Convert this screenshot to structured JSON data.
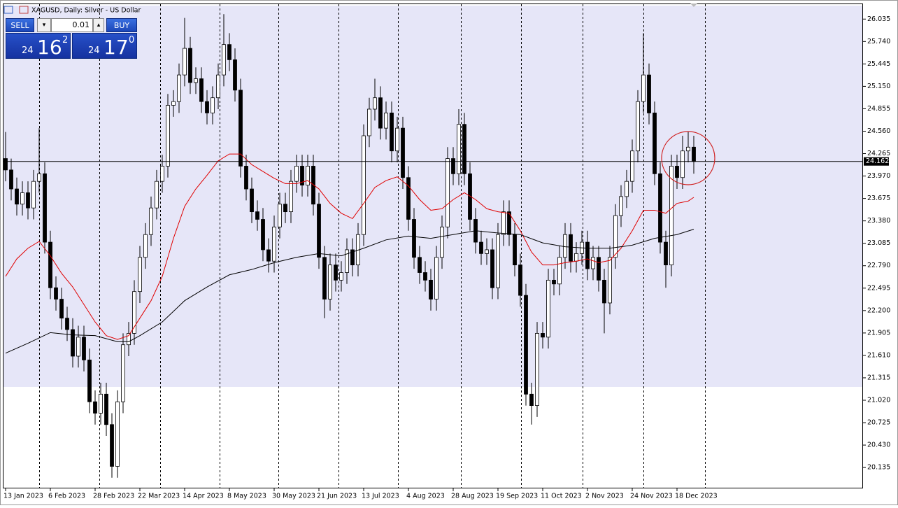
{
  "chart_data": {
    "type": "candlestick",
    "title": "XAGUSD, Daily:  Silver - US Dollar",
    "open": [
      24.2,
      24.05,
      23.8,
      23.6,
      23.75,
      23.55,
      23.9,
      24.0,
      23.1,
      22.5,
      22.35,
      22.1,
      21.95,
      21.6,
      21.85,
      21.55,
      21.0,
      20.85,
      21.1,
      20.7,
      20.15,
      21.0,
      21.75,
      21.9,
      22.45,
      22.9,
      23.2,
      23.55,
      23.9,
      24.1,
      24.9,
      24.95,
      25.3,
      25.65,
      25.2,
      25.25,
      24.95,
      24.8,
      25.0,
      25.3,
      25.7,
      25.5,
      25.1,
      24.1,
      23.8,
      23.5,
      23.4,
      23.0,
      22.85,
      23.3,
      23.6,
      23.5,
      23.9,
      24.1,
      23.85,
      24.1,
      23.6,
      22.9,
      22.35,
      22.8,
      22.6,
      22.7,
      23.0,
      22.8,
      23.2,
      24.5,
      24.85,
      25.0,
      24.6,
      24.8,
      24.3,
      24.6,
      23.95,
      23.4,
      22.9,
      22.7,
      22.6,
      22.35,
      22.9,
      23.3,
      24.2,
      24.0,
      24.65,
      24.0,
      23.4,
      23.1,
      22.95,
      23.0,
      22.5,
      23.2,
      23.5,
      23.2,
      22.8,
      22.4,
      21.1,
      20.95,
      21.9,
      21.85,
      22.6,
      22.55,
      22.9,
      23.2,
      22.85,
      22.95,
      23.1,
      22.75,
      22.9,
      22.6,
      22.3,
      22.9,
      23.45,
      23.7,
      23.9,
      24.3,
      24.95,
      25.3,
      24.8,
      24.0,
      23.1,
      22.8,
      24.1,
      23.95,
      24.3,
      24.35
    ],
    "high": [
      24.55,
      24.2,
      23.95,
      23.9,
      23.9,
      24.05,
      24.6,
      24.15,
      23.25,
      22.65,
      22.5,
      22.25,
      22.1,
      22.0,
      22.0,
      21.7,
      21.15,
      21.25,
      21.25,
      20.85,
      21.15,
      21.9,
      22.05,
      22.6,
      23.05,
      23.35,
      23.7,
      24.05,
      24.25,
      25.05,
      25.1,
      25.45,
      26.05,
      25.8,
      25.4,
      25.4,
      25.1,
      25.15,
      25.45,
      26.1,
      25.85,
      25.65,
      25.25,
      24.25,
      23.95,
      23.65,
      23.55,
      23.15,
      23.45,
      23.75,
      23.75,
      24.05,
      24.25,
      24.25,
      24.25,
      24.25,
      23.75,
      23.05,
      22.95,
      22.95,
      22.85,
      23.15,
      23.15,
      23.35,
      24.65,
      25.0,
      25.25,
      25.15,
      24.95,
      24.95,
      24.75,
      24.75,
      24.1,
      23.55,
      23.05,
      22.85,
      22.75,
      23.05,
      23.45,
      24.35,
      24.35,
      24.85,
      24.8,
      24.15,
      23.55,
      23.25,
      23.15,
      23.15,
      23.35,
      23.65,
      23.65,
      23.35,
      22.95,
      22.55,
      21.25,
      22.05,
      22.05,
      22.75,
      22.75,
      23.05,
      23.35,
      23.35,
      23.1,
      23.25,
      23.25,
      23.05,
      23.05,
      22.75,
      23.05,
      23.6,
      23.85,
      24.05,
      24.45,
      25.1,
      25.85,
      25.45,
      24.95,
      24.15,
      23.25,
      24.25,
      24.25,
      24.5,
      24.55,
      24.5
    ],
    "low": [
      23.9,
      23.65,
      23.45,
      23.45,
      23.4,
      23.4,
      23.75,
      22.95,
      22.35,
      22.2,
      21.95,
      21.8,
      21.45,
      21.45,
      21.4,
      20.85,
      20.7,
      20.7,
      20.55,
      20.0,
      20.0,
      20.85,
      21.6,
      21.75,
      22.3,
      22.75,
      23.05,
      23.4,
      23.75,
      23.95,
      24.75,
      24.8,
      25.15,
      25.05,
      25.05,
      24.8,
      24.65,
      24.65,
      24.85,
      25.15,
      25.35,
      24.95,
      23.95,
      23.65,
      23.35,
      23.25,
      22.85,
      22.7,
      22.7,
      23.15,
      23.35,
      23.35,
      23.75,
      23.7,
      23.7,
      23.45,
      22.75,
      22.1,
      22.2,
      22.45,
      22.45,
      22.55,
      22.65,
      22.65,
      23.05,
      24.35,
      24.7,
      24.45,
      24.45,
      24.15,
      24.15,
      23.8,
      23.25,
      22.75,
      22.55,
      22.45,
      22.2,
      22.2,
      22.75,
      23.15,
      23.85,
      23.85,
      23.85,
      23.25,
      22.95,
      22.8,
      22.8,
      22.35,
      22.35,
      23.05,
      23.05,
      22.65,
      22.25,
      20.95,
      20.7,
      20.8,
      21.7,
      21.7,
      22.4,
      22.4,
      22.75,
      22.7,
      22.7,
      22.8,
      22.6,
      22.6,
      22.45,
      21.9,
      22.15,
      22.75,
      23.3,
      23.55,
      23.75,
      24.15,
      24.8,
      24.65,
      23.85,
      22.95,
      22.5,
      22.65,
      23.8,
      23.8,
      24.15,
      24.0
    ],
    "close": [
      24.05,
      23.8,
      23.6,
      23.75,
      23.55,
      23.9,
      24.0,
      23.1,
      22.5,
      22.35,
      22.1,
      21.95,
      21.6,
      21.85,
      21.55,
      21.0,
      20.85,
      21.1,
      20.7,
      20.15,
      21.0,
      21.75,
      21.9,
      22.45,
      22.9,
      23.2,
      23.55,
      23.9,
      24.1,
      24.9,
      24.95,
      25.3,
      25.65,
      25.2,
      25.25,
      24.95,
      24.8,
      25.0,
      25.3,
      25.7,
      25.5,
      25.1,
      24.1,
      23.8,
      23.5,
      23.4,
      23.0,
      22.85,
      23.3,
      23.6,
      23.5,
      23.9,
      24.1,
      23.85,
      24.1,
      23.6,
      22.9,
      22.35,
      22.8,
      22.6,
      22.7,
      23.0,
      22.8,
      23.2,
      24.5,
      24.85,
      25.0,
      24.6,
      24.8,
      24.3,
      24.6,
      23.95,
      23.4,
      22.9,
      22.7,
      22.6,
      22.35,
      22.9,
      23.3,
      24.2,
      24.0,
      24.65,
      24.0,
      23.4,
      23.1,
      22.95,
      23.0,
      22.5,
      23.2,
      23.5,
      23.2,
      22.8,
      22.4,
      21.1,
      20.95,
      21.9,
      21.85,
      22.6,
      22.55,
      22.9,
      23.2,
      22.85,
      22.95,
      23.1,
      22.75,
      22.9,
      22.6,
      22.3,
      22.9,
      23.45,
      23.7,
      23.9,
      24.3,
      24.95,
      25.3,
      24.8,
      24.0,
      23.1,
      22.8,
      24.1,
      23.95,
      24.3,
      24.35,
      24.162
    ],
    "up_color": "#ffffff",
    "down_color": "#000000",
    "overlays": [
      {
        "color": "#e00000",
        "x": [
          0,
          2,
          4,
          6,
          8,
          10,
          12,
          14,
          16,
          18,
          20,
          22,
          24,
          26,
          28,
          30,
          32,
          34,
          36,
          38,
          40,
          42,
          44,
          46,
          48,
          50,
          52,
          54,
          56,
          58,
          60,
          62,
          64,
          66,
          68,
          70,
          72,
          74,
          76,
          78,
          80,
          82,
          84,
          86,
          88,
          90,
          92,
          94,
          96,
          98,
          100,
          102,
          104,
          106,
          108,
          110,
          112,
          114,
          116,
          118,
          120,
          122,
          123
        ],
        "values": [
          22.65,
          22.88,
          23.02,
          23.11,
          22.92,
          22.69,
          22.51,
          22.28,
          22.05,
          21.87,
          21.82,
          21.87,
          22.1,
          22.33,
          22.65,
          23.15,
          23.57,
          23.8,
          23.98,
          24.17,
          24.26,
          24.26,
          24.12,
          24.03,
          23.94,
          23.87,
          23.87,
          23.91,
          23.8,
          23.61,
          23.48,
          23.41,
          23.61,
          23.82,
          23.91,
          23.96,
          23.84,
          23.66,
          23.52,
          23.54,
          23.66,
          23.75,
          23.66,
          23.54,
          23.5,
          23.48,
          23.25,
          22.97,
          22.8,
          22.8,
          22.83,
          22.85,
          22.88,
          22.83,
          22.86,
          23.02,
          23.25,
          23.52,
          23.52,
          23.48,
          23.61,
          23.64,
          23.69
        ]
      },
      {
        "color": "#000000",
        "x": [
          0,
          4,
          8,
          12,
          16,
          20,
          22,
          24,
          28,
          32,
          36,
          40,
          44,
          48,
          52,
          56,
          60,
          64,
          68,
          72,
          76,
          80,
          84,
          88,
          92,
          96,
          100,
          104,
          108,
          112,
          116,
          120,
          123
        ],
        "values": [
          21.64,
          21.77,
          21.91,
          21.88,
          21.87,
          21.79,
          21.79,
          21.87,
          22.05,
          22.33,
          22.51,
          22.67,
          22.74,
          22.83,
          22.9,
          22.95,
          22.92,
          23.02,
          23.13,
          23.18,
          23.15,
          23.2,
          23.25,
          23.22,
          23.2,
          23.09,
          23.04,
          23.02,
          23.02,
          23.06,
          23.15,
          23.2,
          23.27
        ]
      }
    ],
    "current_price": 24.162,
    "xlim": [
      -0.375,
      153.25
    ],
    "xticks": [
      {
        "value": 0,
        "label": "13 Jan 2023"
      },
      {
        "value": 8,
        "label": "6 Feb 2023"
      },
      {
        "value": 16,
        "label": "28 Feb 2023"
      },
      {
        "value": 24,
        "label": "22 Mar 2023"
      },
      {
        "value": 32,
        "label": "14 Apr 2023"
      },
      {
        "value": 40,
        "label": "8 May 2023"
      },
      {
        "value": 48,
        "label": "30 May 2023"
      },
      {
        "value": 56,
        "label": "21 Jun 2023"
      },
      {
        "value": 64,
        "label": "13 Jul 2023"
      },
      {
        "value": 72,
        "label": "4 Aug 2023"
      },
      {
        "value": 80,
        "label": "28 Aug 2023"
      },
      {
        "value": 88,
        "label": "19 Sep 2023"
      },
      {
        "value": 96,
        "label": "11 Oct 2023"
      },
      {
        "value": 104,
        "label": "2 Nov 2023"
      },
      {
        "value": 112,
        "label": "24 Nov 2023"
      },
      {
        "value": 120,
        "label": "18 Dec 2023"
      }
    ],
    "separators": [
      6,
      16.75,
      27.625,
      38.25,
      48.75,
      59.5,
      70.125,
      81.375,
      92.125,
      103.125,
      114,
      125
    ],
    "ylim": [
      19.86,
      26.24
    ],
    "yticks": [
      20.135,
      {
        "value": 20.43,
        "label": "20.430"
      },
      20.725,
      {
        "value": 21.02,
        "label": "21.020"
      },
      21.315,
      {
        "value": 21.61,
        "label": "21.610"
      },
      21.905,
      {
        "value": 22.2,
        "label": "22.200"
      },
      22.495,
      {
        "value": 22.79,
        "label": "22.790"
      },
      23.085,
      {
        "value": 23.38,
        "label": "23.380"
      },
      23.675,
      {
        "value": 23.97,
        "label": "23.970"
      },
      24.265,
      {
        "value": 24.56,
        "label": "24.560"
      },
      24.855,
      {
        "value": 25.15,
        "label": "25.150"
      },
      25.445,
      {
        "value": 25.74,
        "label": "25.740"
      },
      26.035
    ]
  },
  "trade_panel": {
    "sell": "SELL",
    "buy": "BUY",
    "volume": 0.01,
    "bid": {
      "lead": "24",
      "big": "16",
      "small": "2"
    },
    "ask": {
      "lead": "24",
      "big": "17",
      "small": "0"
    }
  }
}
